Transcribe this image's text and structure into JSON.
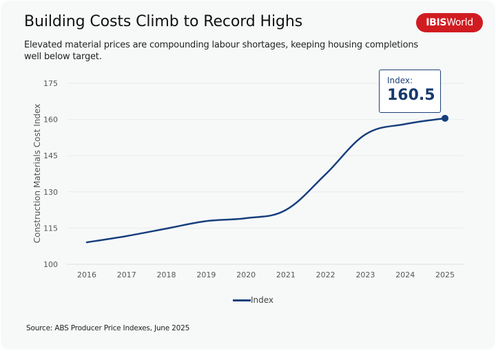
{
  "header": {
    "title": "Building Costs Climb to Record Highs",
    "subtitle": "Elevated material prices are compounding labour shortages, keeping housing completions well below target.",
    "logo_bold": "IBIS",
    "logo_regular": "World"
  },
  "colors": {
    "series": "#163f7c",
    "brand": "#d01c21",
    "grid": "#e9ecec",
    "background": "#f7f9f9"
  },
  "tooltip": {
    "label": "Index:",
    "value": "160.5"
  },
  "footer": {
    "source": "Source: ABS Producer Price Indexes, June 2025"
  },
  "chart_data": {
    "type": "line",
    "title": "Building Costs Climb to Record Highs",
    "xlabel": "",
    "ylabel": "Construction Materials Cost Index",
    "categories": [
      "2016",
      "2017",
      "2018",
      "2019",
      "2020",
      "2021",
      "2022",
      "2023",
      "2024",
      "2025"
    ],
    "series": [
      {
        "name": "Index",
        "values": [
          109.1,
          111.7,
          114.8,
          117.9,
          119.1,
          122.5,
          137.3,
          153.8,
          158.1,
          160.5
        ]
      }
    ],
    "ylim": [
      100,
      175
    ],
    "yticks": [
      100,
      115,
      130,
      145,
      160,
      175
    ],
    "grid": true,
    "legend": "bottom-center",
    "highlight": {
      "category": "2025",
      "value": 160.5
    }
  }
}
